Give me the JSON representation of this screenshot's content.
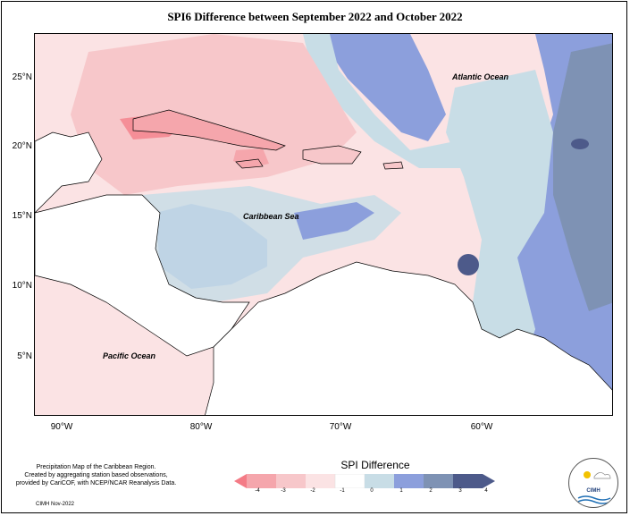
{
  "title": "SPI6 Difference between September 2022 and October 2022",
  "axes": {
    "lat_labels": [
      "25°N",
      "20°N",
      "15°N",
      "10°N",
      "5°N"
    ],
    "lon_labels": [
      "90°W",
      "80°W",
      "70°W",
      "60°W"
    ]
  },
  "regions": {
    "atlantic": "Atlantic Ocean",
    "caribbean": "Caribbean Sea",
    "pacific": "Pacific Ocean"
  },
  "credit": {
    "line1": "Precipitation Map of the Caribbean Region.",
    "line2": "Created by aggregating station based observations,",
    "line3": "provided by CariCOF, with NCEP/NCAR Reanalysis Data.",
    "date": "CIMH Nov-2022"
  },
  "legend": {
    "title": "SPI Difference",
    "ticks": [
      "-4",
      "-3",
      "-2",
      "-1",
      "0",
      "1",
      "2",
      "3",
      "4"
    ],
    "colors": [
      "#f47b86",
      "#f5a6ac",
      "#f7c7ca",
      "#fbe3e4",
      "#ffffff",
      "#c8dde6",
      "#8c9fdc",
      "#7e92b4",
      "#4d5a8a"
    ]
  },
  "logo": {
    "text": "CIMH"
  }
}
